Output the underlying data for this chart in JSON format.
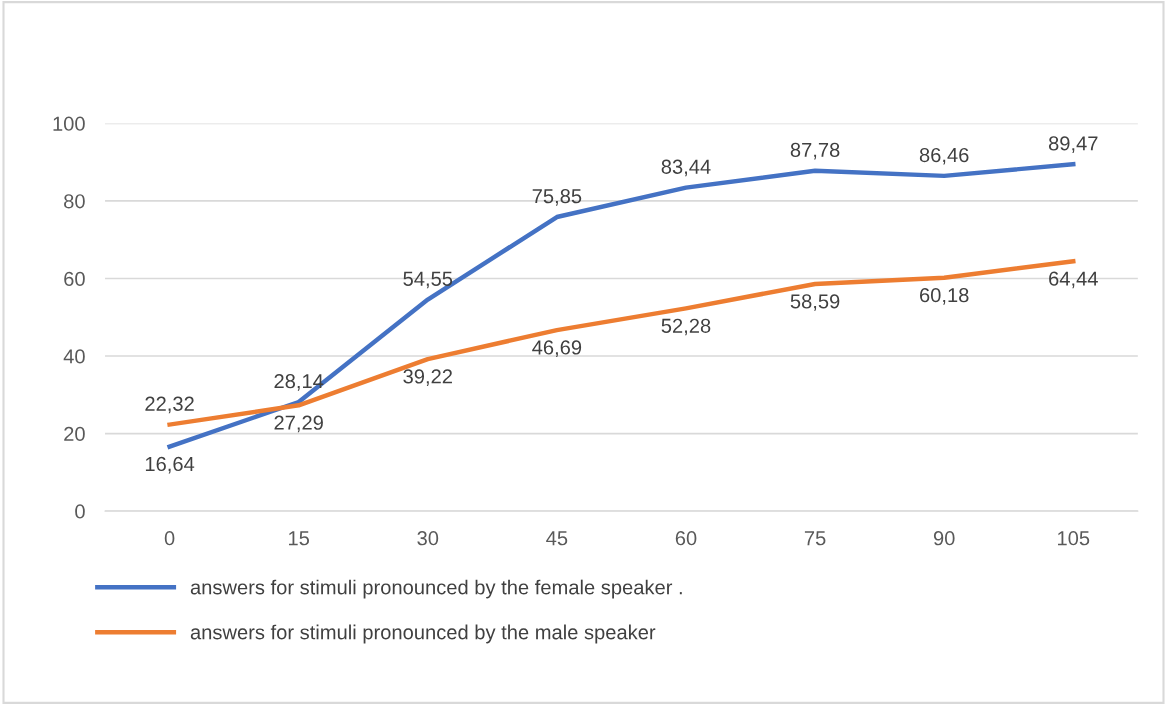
{
  "chart_data": {
    "type": "line",
    "categories": [
      "0",
      "15",
      "30",
      "45",
      "60",
      "75",
      "90",
      "105"
    ],
    "series": [
      {
        "name": "answers for stimuli pronounced by the female speaker .",
        "color": "#4472c4",
        "values": [
          16.64,
          28.14,
          54.55,
          75.85,
          83.44,
          87.78,
          86.46,
          89.47
        ],
        "value_labels": [
          "16,64",
          "28,14",
          "54,55",
          "75,85",
          "83,44",
          "87,78",
          "86,46",
          "89,47"
        ]
      },
      {
        "name": "answers for stimuli pronounced by the male speaker",
        "color": "#ed7d31",
        "values": [
          22.32,
          27.29,
          39.22,
          46.69,
          52.28,
          58.59,
          60.18,
          64.44
        ],
        "value_labels": [
          "22,32",
          "27,29",
          "39,22",
          "46,69",
          "52,28",
          "58,59",
          "60,18",
          "64,44"
        ]
      }
    ],
    "ylim": [
      0,
      100
    ],
    "yticks": [
      0,
      20,
      40,
      60,
      80,
      100
    ],
    "grid": "y",
    "legend": "bottom",
    "marker": "none",
    "line_style": "solid"
  }
}
